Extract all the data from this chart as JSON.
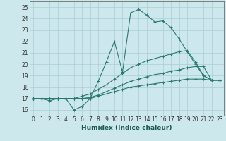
{
  "xlabel": "Humidex (Indice chaleur)",
  "ylabel": "",
  "background_color": "#cde8ec",
  "grid_color": "#aacdd4",
  "line_color": "#2a7a72",
  "xlim": [
    -0.5,
    23.5
  ],
  "ylim": [
    15.5,
    25.5
  ],
  "xticks": [
    0,
    1,
    2,
    3,
    4,
    5,
    6,
    7,
    8,
    9,
    10,
    11,
    12,
    13,
    14,
    15,
    16,
    17,
    18,
    19,
    20,
    21,
    22,
    23
  ],
  "yticks": [
    16,
    17,
    18,
    19,
    20,
    21,
    22,
    23,
    24,
    25
  ],
  "series": [
    [
      17.0,
      17.0,
      16.8,
      17.0,
      17.0,
      16.0,
      16.3,
      17.0,
      18.5,
      20.2,
      22.0,
      19.3,
      24.5,
      24.8,
      24.3,
      23.7,
      23.8,
      23.2,
      22.2,
      21.1,
      20.0,
      19.0,
      18.6,
      18.6
    ],
    [
      17.0,
      17.0,
      17.0,
      17.0,
      17.0,
      17.0,
      17.0,
      17.0,
      17.2,
      17.4,
      17.6,
      17.8,
      18.0,
      18.1,
      18.2,
      18.3,
      18.4,
      18.5,
      18.6,
      18.7,
      18.7,
      18.7,
      18.6,
      18.6
    ],
    [
      17.0,
      17.0,
      17.0,
      17.0,
      17.0,
      17.0,
      17.2,
      17.4,
      17.8,
      18.2,
      18.7,
      19.2,
      19.7,
      20.0,
      20.3,
      20.5,
      20.7,
      20.9,
      21.1,
      21.2,
      20.2,
      19.0,
      18.6,
      18.6
    ],
    [
      17.0,
      17.0,
      17.0,
      17.0,
      17.0,
      17.0,
      17.0,
      17.1,
      17.3,
      17.6,
      17.9,
      18.2,
      18.5,
      18.7,
      18.9,
      19.1,
      19.2,
      19.4,
      19.5,
      19.7,
      19.8,
      19.8,
      18.6,
      18.6
    ]
  ]
}
